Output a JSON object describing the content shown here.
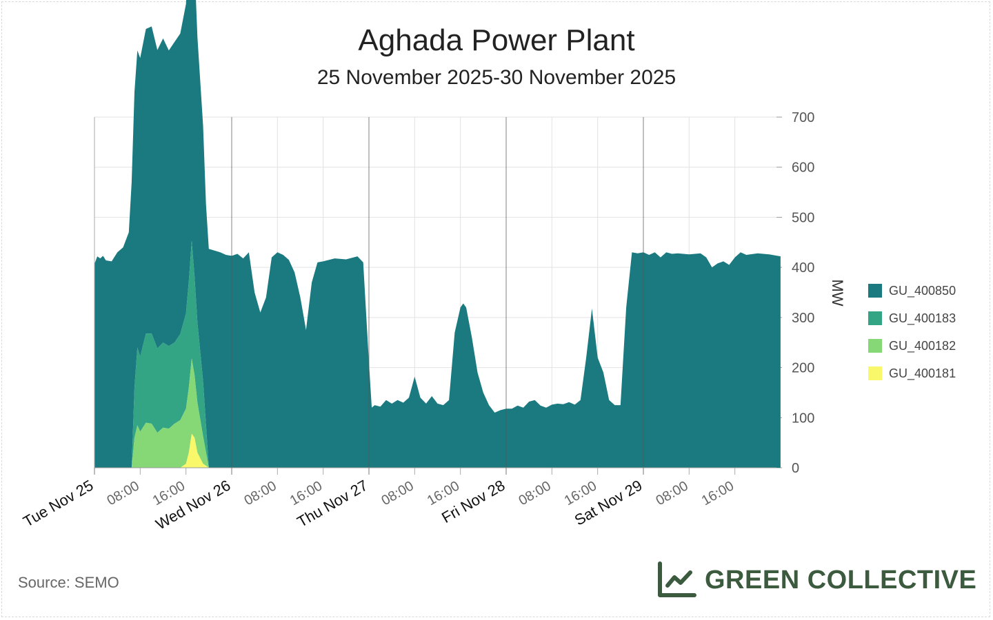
{
  "title": "Aghada Power Plant",
  "subtitle": "25 November 2025-30 November 2025",
  "source": "Source: SEMO",
  "brand": {
    "name": "GREEN COLLECTIVE",
    "icon": "line-chart-icon",
    "color": "#3b5a3e"
  },
  "chart_data": {
    "type": "area",
    "stacked": true,
    "ylabel": "MW",
    "ylim": [
      0,
      700
    ],
    "yticks": [
      0,
      100,
      200,
      300,
      400,
      500,
      600,
      700
    ],
    "y_axis_position": "right",
    "xlim": [
      "2025-11-25T00:00",
      "2025-11-29T23:59"
    ],
    "x_day_labels": [
      "Tue Nov 25",
      "Wed Nov 26",
      "Thu Nov 27",
      "Fri Nov 28",
      "Sat Nov 29"
    ],
    "x_hour_labels": [
      "08:00",
      "16:00"
    ],
    "grid": true,
    "legend_position": "right",
    "series": [
      {
        "name": "GU_400850",
        "color": "#1a7a80",
        "points": [
          [
            "2025-11-25T00:00",
            407
          ],
          [
            "2025-11-25T00:30",
            422
          ],
          [
            "2025-11-25T01:00",
            418
          ],
          [
            "2025-11-25T01:30",
            423
          ],
          [
            "2025-11-25T02:00",
            414
          ],
          [
            "2025-11-25T03:00",
            412
          ],
          [
            "2025-11-25T04:00",
            430
          ],
          [
            "2025-11-25T05:00",
            440
          ],
          [
            "2025-11-25T06:00",
            470
          ],
          [
            "2025-11-25T06:30",
            570
          ],
          [
            "2025-11-25T07:00",
            590
          ],
          [
            "2025-11-25T08:00",
            596
          ],
          [
            "2025-11-25T09:00",
            608
          ],
          [
            "2025-11-25T10:00",
            613
          ],
          [
            "2025-11-25T11:00",
            596
          ],
          [
            "2025-11-25T12:00",
            607
          ],
          [
            "2025-11-25T13:00",
            590
          ],
          [
            "2025-11-25T14:00",
            600
          ],
          [
            "2025-11-25T15:00",
            600
          ],
          [
            "2025-11-25T16:00",
            618
          ],
          [
            "2025-11-25T17:00",
            670
          ],
          [
            "2025-11-25T18:00",
            570
          ],
          [
            "2025-11-25T19:00",
            510
          ],
          [
            "2025-11-25T19:30",
            440
          ],
          [
            "2025-11-25T20:00",
            437
          ],
          [
            "2025-11-25T22:00",
            430
          ],
          [
            "2025-11-25T23:00",
            425
          ],
          [
            "2025-11-26T00:00",
            423
          ],
          [
            "2025-11-26T01:00",
            427
          ],
          [
            "2025-11-26T02:00",
            418
          ],
          [
            "2025-11-26T03:00",
            430
          ],
          [
            "2025-11-26T04:00",
            350
          ],
          [
            "2025-11-26T05:00",
            310
          ],
          [
            "2025-11-26T06:00",
            340
          ],
          [
            "2025-11-26T07:00",
            420
          ],
          [
            "2025-11-26T08:00",
            430
          ],
          [
            "2025-11-26T09:00",
            425
          ],
          [
            "2025-11-26T10:00",
            415
          ],
          [
            "2025-11-26T11:00",
            390
          ],
          [
            "2025-11-26T12:00",
            340
          ],
          [
            "2025-11-26T13:00",
            275
          ],
          [
            "2025-11-26T14:00",
            370
          ],
          [
            "2025-11-26T15:00",
            410
          ],
          [
            "2025-11-26T16:00",
            412
          ],
          [
            "2025-11-26T18:00",
            418
          ],
          [
            "2025-11-26T20:00",
            416
          ],
          [
            "2025-11-26T22:00",
            422
          ],
          [
            "2025-11-26T23:00",
            410
          ],
          [
            "2025-11-27T00:00",
            210
          ],
          [
            "2025-11-27T00:30",
            120
          ],
          [
            "2025-11-27T01:00",
            125
          ],
          [
            "2025-11-27T02:00",
            122
          ],
          [
            "2025-11-27T03:00",
            135
          ],
          [
            "2025-11-27T04:00",
            128
          ],
          [
            "2025-11-27T05:00",
            135
          ],
          [
            "2025-11-27T06:00",
            130
          ],
          [
            "2025-11-27T07:00",
            140
          ],
          [
            "2025-11-27T08:00",
            182
          ],
          [
            "2025-11-27T09:00",
            140
          ],
          [
            "2025-11-27T10:00",
            128
          ],
          [
            "2025-11-27T11:00",
            143
          ],
          [
            "2025-11-27T12:00",
            128
          ],
          [
            "2025-11-27T13:00",
            125
          ],
          [
            "2025-11-27T14:00",
            135
          ],
          [
            "2025-11-27T15:00",
            270
          ],
          [
            "2025-11-27T16:00",
            320
          ],
          [
            "2025-11-27T16:30",
            328
          ],
          [
            "2025-11-27T17:00",
            320
          ],
          [
            "2025-11-27T18:00",
            260
          ],
          [
            "2025-11-27T19:00",
            190
          ],
          [
            "2025-11-27T20:00",
            150
          ],
          [
            "2025-11-27T21:00",
            125
          ],
          [
            "2025-11-27T22:00",
            110
          ],
          [
            "2025-11-27T23:00",
            115
          ],
          [
            "2025-11-28T00:00",
            118
          ],
          [
            "2025-11-28T01:00",
            118
          ],
          [
            "2025-11-28T02:00",
            124
          ],
          [
            "2025-11-28T03:00",
            120
          ],
          [
            "2025-11-28T04:00",
            132
          ],
          [
            "2025-11-28T05:00",
            135
          ],
          [
            "2025-11-28T06:00",
            124
          ],
          [
            "2025-11-28T07:00",
            120
          ],
          [
            "2025-11-28T08:00",
            126
          ],
          [
            "2025-11-28T09:00",
            128
          ],
          [
            "2025-11-28T10:00",
            127
          ],
          [
            "2025-11-28T11:00",
            131
          ],
          [
            "2025-11-28T12:00",
            126
          ],
          [
            "2025-11-28T13:00",
            135
          ],
          [
            "2025-11-28T14:00",
            220
          ],
          [
            "2025-11-28T15:00",
            318
          ],
          [
            "2025-11-28T16:00",
            220
          ],
          [
            "2025-11-28T17:00",
            190
          ],
          [
            "2025-11-28T18:00",
            135
          ],
          [
            "2025-11-28T19:00",
            125
          ],
          [
            "2025-11-28T20:00",
            125
          ],
          [
            "2025-11-28T21:00",
            320
          ],
          [
            "2025-11-28T22:00",
            430
          ],
          [
            "2025-11-28T23:00",
            428
          ],
          [
            "2025-11-29T00:00",
            430
          ],
          [
            "2025-11-29T01:00",
            425
          ],
          [
            "2025-11-29T02:00",
            430
          ],
          [
            "2025-11-29T03:00",
            420
          ],
          [
            "2025-11-29T04:00",
            430
          ],
          [
            "2025-11-29T05:00",
            427
          ],
          [
            "2025-11-29T06:00",
            428
          ],
          [
            "2025-11-29T08:00",
            426
          ],
          [
            "2025-11-29T10:00",
            428
          ],
          [
            "2025-11-29T11:00",
            420
          ],
          [
            "2025-11-29T12:00",
            400
          ],
          [
            "2025-11-29T13:00",
            408
          ],
          [
            "2025-11-29T14:00",
            412
          ],
          [
            "2025-11-29T15:00",
            405
          ],
          [
            "2025-11-29T16:00",
            420
          ],
          [
            "2025-11-29T17:00",
            430
          ],
          [
            "2025-11-29T18:00",
            425
          ],
          [
            "2025-11-29T20:00",
            428
          ],
          [
            "2025-11-29T22:00",
            426
          ],
          [
            "2025-11-29T23:59",
            422
          ]
        ]
      },
      {
        "name": "GU_400183",
        "color": "#33a585",
        "points": [
          [
            "2025-11-25T06:30",
            0
          ],
          [
            "2025-11-25T07:00",
            100
          ],
          [
            "2025-11-25T07:30",
            155
          ],
          [
            "2025-11-25T08:00",
            150
          ],
          [
            "2025-11-25T09:00",
            178
          ],
          [
            "2025-11-25T10:00",
            180
          ],
          [
            "2025-11-25T11:00",
            168
          ],
          [
            "2025-11-25T12:00",
            170
          ],
          [
            "2025-11-25T13:00",
            165
          ],
          [
            "2025-11-25T14:00",
            162
          ],
          [
            "2025-11-25T15:00",
            172
          ],
          [
            "2025-11-25T16:00",
            190
          ],
          [
            "2025-11-25T17:00",
            235
          ],
          [
            "2025-11-25T18:00",
            160
          ],
          [
            "2025-11-25T19:00",
            110
          ],
          [
            "2025-11-25T20:00",
            0
          ]
        ]
      },
      {
        "name": "GU_400182",
        "color": "#86d877",
        "points": [
          [
            "2025-11-25T06:30",
            0
          ],
          [
            "2025-11-25T07:00",
            60
          ],
          [
            "2025-11-25T07:30",
            85
          ],
          [
            "2025-11-25T08:00",
            72
          ],
          [
            "2025-11-25T09:00",
            90
          ],
          [
            "2025-11-25T10:00",
            88
          ],
          [
            "2025-11-25T11:00",
            70
          ],
          [
            "2025-11-25T12:00",
            80
          ],
          [
            "2025-11-25T13:00",
            78
          ],
          [
            "2025-11-25T14:00",
            88
          ],
          [
            "2025-11-25T15:00",
            95
          ],
          [
            "2025-11-25T16:00",
            110
          ],
          [
            "2025-11-25T17:00",
            150
          ],
          [
            "2025-11-25T18:00",
            100
          ],
          [
            "2025-11-25T19:00",
            55
          ],
          [
            "2025-11-25T20:00",
            0
          ]
        ]
      },
      {
        "name": "GU_400181",
        "color": "#f8f86a",
        "points": [
          [
            "2025-11-25T15:00",
            0
          ],
          [
            "2025-11-25T16:00",
            8
          ],
          [
            "2025-11-25T16:30",
            30
          ],
          [
            "2025-11-25T17:00",
            68
          ],
          [
            "2025-11-25T17:30",
            60
          ],
          [
            "2025-11-25T18:00",
            30
          ],
          [
            "2025-11-25T19:00",
            8
          ],
          [
            "2025-11-25T20:00",
            0
          ]
        ]
      }
    ]
  }
}
